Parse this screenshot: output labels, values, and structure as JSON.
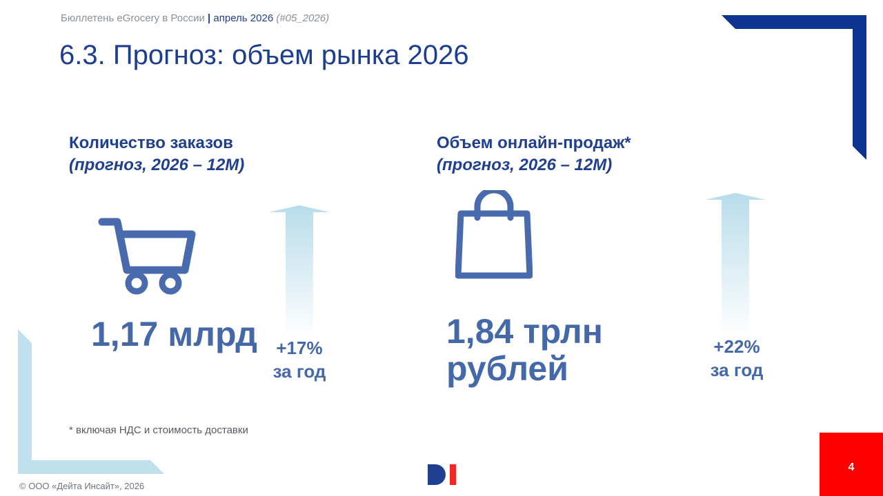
{
  "header": {
    "publication": "Бюллетень eGrocery в России",
    "separator": "|",
    "date": "апрель 2026",
    "issue": "(#05_2026)"
  },
  "title": "6.3. Прогноз: объем рынка 2026",
  "blocks": [
    {
      "label": "Количество заказов",
      "sublabel": "(прогноз, 2026 – 12M)",
      "icon": "shopping-cart-icon",
      "value_lines": [
        "1,17 млрд"
      ],
      "growth_line1": "+17%",
      "growth_line2": "за год"
    },
    {
      "label": "Объем онлайн-продаж*",
      "sublabel": "(прогноз, 2026 – 12M)",
      "icon": "shopping-bag-icon",
      "value_lines": [
        "1,84 трлн",
        "рублей"
      ],
      "growth_line1": "+22%",
      "growth_line2": "за год"
    }
  ],
  "footnote": "* включая НДС и стоимость доставки",
  "footer": {
    "copyright": "© ООО «Дейта Инсайт», 2026",
    "page_number": "4"
  },
  "colors": {
    "title_blue": "#1d3d8f",
    "value_blue": "#4568a8",
    "icon_blue": "#4a6aae",
    "corner_navy": "#0d3590",
    "light_blue": "#bfe0ec",
    "accent_red": "#ff0000"
  }
}
